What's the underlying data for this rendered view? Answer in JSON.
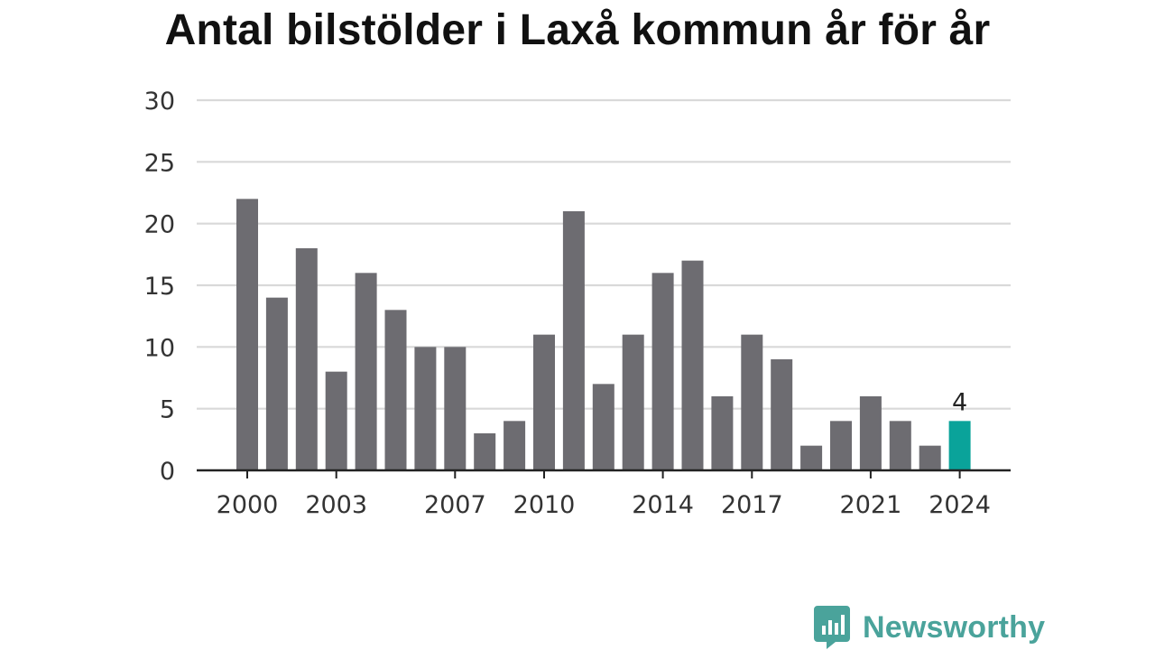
{
  "title": "Antal bilstölder i Laxå kommun år för år",
  "brand": {
    "name": "Newsworthy",
    "color": "#4aa39b"
  },
  "colors": {
    "bar": "#6d6c71",
    "highlight": "#0aa39a",
    "grid": "#d9d9d9",
    "axis": "#222222"
  },
  "chart_data": {
    "type": "bar",
    "categories": [
      "2000",
      "2001",
      "2002",
      "2003",
      "2004",
      "2005",
      "2006",
      "2007",
      "2008",
      "2009",
      "2010",
      "2011",
      "2012",
      "2013",
      "2014",
      "2015",
      "2016",
      "2017",
      "2018",
      "2019",
      "2020",
      "2021",
      "2022",
      "2023",
      "2024"
    ],
    "values": [
      22,
      14,
      18,
      8,
      16,
      13,
      10,
      10,
      3,
      4,
      11,
      21,
      7,
      11,
      16,
      17,
      6,
      11,
      9,
      2,
      4,
      6,
      4,
      2,
      4
    ],
    "x_tick_labels": [
      "2000",
      "2003",
      "2007",
      "2010",
      "2014",
      "2017",
      "2021",
      "2024"
    ],
    "y_ticks": [
      0,
      5,
      10,
      15,
      20,
      25,
      30
    ],
    "ylim": [
      0,
      30
    ],
    "highlight_category": "2024",
    "highlight_label": "4",
    "title": "Antal bilstölder i Laxå kommun år för år",
    "xlabel": "",
    "ylabel": "",
    "grid": true
  }
}
